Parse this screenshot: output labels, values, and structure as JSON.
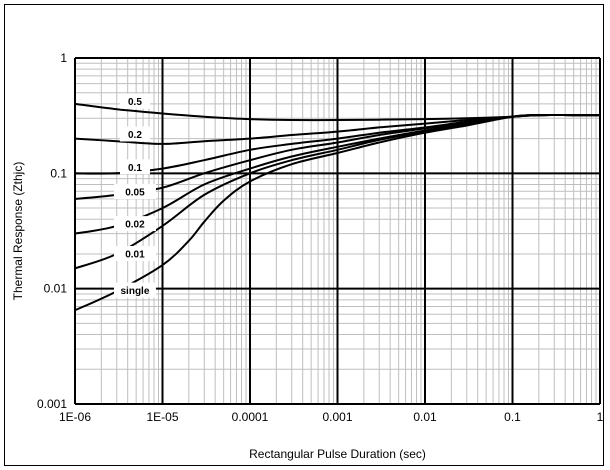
{
  "chart_data": {
    "type": "line",
    "title": "",
    "xlabel": "Rectangular Pulse Duration (sec)",
    "ylabel": "Thermal Response (Zthjc)",
    "x_scale": "log",
    "y_scale": "log",
    "xlim": [
      1e-06,
      1
    ],
    "ylim": [
      0.001,
      1
    ],
    "grid": true,
    "legend": "inline-labels",
    "x_tick_labels": [
      "1E-06",
      "1E-05",
      "0.0001",
      "0.001",
      "0.01",
      "0.1",
      "1"
    ],
    "y_tick_labels": [
      "0.001",
      "0.01",
      "0.1",
      "1"
    ],
    "colors": {
      "line": "#000000",
      "grid_major": "#000000",
      "grid_minor": "#bfbfbf",
      "label_bg": "#ffffff"
    },
    "series": [
      {
        "name": "0.5",
        "x": [
          1e-06,
          3e-06,
          1e-05,
          3e-05,
          0.0001,
          0.0003,
          0.001,
          0.003,
          0.01,
          0.03,
          0.1,
          0.2,
          0.5,
          1
        ],
        "y": [
          0.4,
          0.36,
          0.33,
          0.31,
          0.295,
          0.29,
          0.29,
          0.292,
          0.295,
          0.3,
          0.31,
          0.32,
          0.32,
          0.32
        ]
      },
      {
        "name": "0.2",
        "x": [
          1e-06,
          3e-06,
          1e-05,
          3e-05,
          0.0001,
          0.0003,
          0.001,
          0.003,
          0.01,
          0.03,
          0.1,
          0.2,
          0.5,
          1
        ],
        "y": [
          0.2,
          0.19,
          0.18,
          0.19,
          0.2,
          0.215,
          0.23,
          0.25,
          0.27,
          0.29,
          0.31,
          0.32,
          0.32,
          0.32
        ]
      },
      {
        "name": "0.1",
        "x": [
          1e-06,
          3e-06,
          1e-05,
          3e-05,
          0.0001,
          0.0003,
          0.001,
          0.003,
          0.01,
          0.03,
          0.1,
          0.2,
          0.5,
          1
        ],
        "y": [
          0.1,
          0.1,
          0.11,
          0.13,
          0.16,
          0.18,
          0.2,
          0.225,
          0.25,
          0.28,
          0.31,
          0.32,
          0.32,
          0.32
        ]
      },
      {
        "name": "0.05",
        "x": [
          1e-06,
          3e-06,
          1e-05,
          3e-05,
          0.0001,
          0.0003,
          0.001,
          0.003,
          0.01,
          0.03,
          0.1,
          0.2,
          0.5,
          1
        ],
        "y": [
          0.06,
          0.065,
          0.075,
          0.1,
          0.13,
          0.16,
          0.185,
          0.215,
          0.245,
          0.275,
          0.31,
          0.32,
          0.32,
          0.32
        ]
      },
      {
        "name": "0.02",
        "x": [
          1e-06,
          3e-06,
          1e-05,
          3e-05,
          0.0001,
          0.0003,
          0.001,
          0.003,
          0.01,
          0.03,
          0.1,
          0.2,
          0.5,
          1
        ],
        "y": [
          0.03,
          0.035,
          0.05,
          0.08,
          0.11,
          0.14,
          0.17,
          0.2,
          0.235,
          0.27,
          0.31,
          0.32,
          0.32,
          0.32
        ]
      },
      {
        "name": "0.01",
        "x": [
          1e-06,
          3e-06,
          1e-05,
          3e-05,
          0.0001,
          0.0003,
          0.001,
          0.003,
          0.01,
          0.03,
          0.1,
          0.2,
          0.5,
          1
        ],
        "y": [
          0.015,
          0.02,
          0.035,
          0.065,
          0.1,
          0.13,
          0.16,
          0.195,
          0.23,
          0.265,
          0.31,
          0.32,
          0.32,
          0.32
        ]
      },
      {
        "name": "single",
        "x": [
          1e-06,
          3e-06,
          1e-05,
          2e-05,
          3e-05,
          5e-05,
          0.0001,
          0.0003,
          0.001,
          0.003,
          0.01,
          0.03,
          0.1,
          0.2,
          0.5,
          1
        ],
        "y": [
          0.0065,
          0.0095,
          0.016,
          0.026,
          0.038,
          0.058,
          0.085,
          0.12,
          0.15,
          0.185,
          0.225,
          0.26,
          0.31,
          0.32,
          0.32,
          0.32
        ]
      }
    ]
  }
}
